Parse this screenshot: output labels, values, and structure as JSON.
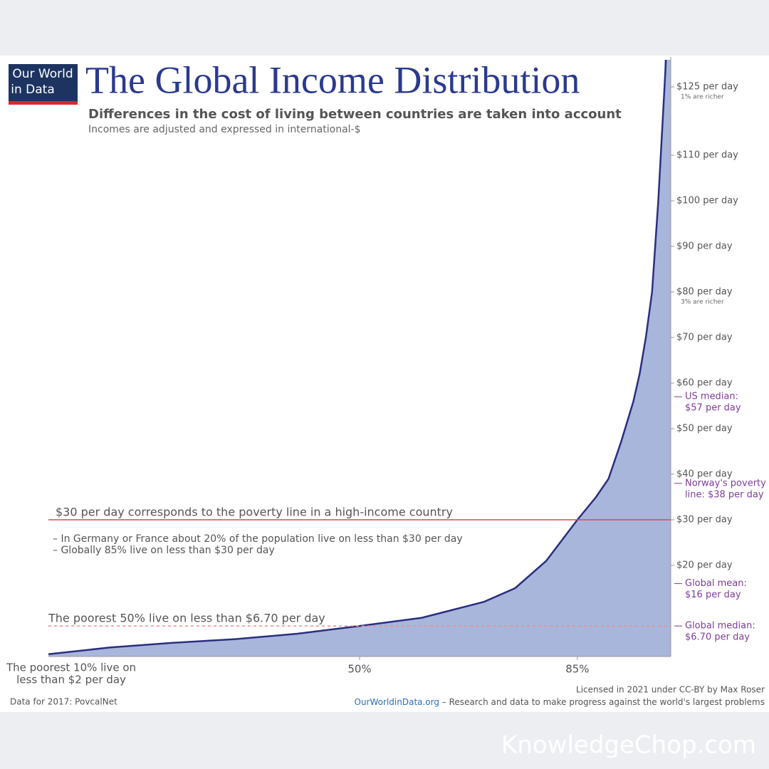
{
  "chart_data": {
    "type": "area",
    "logo": [
      "Our World",
      "in Data"
    ],
    "title": "The Global Income Distribution",
    "subtitle": "Differences in the cost of living between countries are taken into account",
    "note": "Incomes are adjusted and expressed in international-$",
    "x": [
      0,
      10,
      20,
      30,
      40,
      50,
      60,
      70,
      75,
      80,
      85,
      88,
      90,
      92,
      94,
      95,
      96,
      97,
      98,
      99
    ],
    "values": [
      0.5,
      2,
      3,
      3.8,
      5,
      6.7,
      8.5,
      12,
      15,
      21,
      30,
      35,
      39,
      47,
      56,
      62,
      70,
      80,
      100,
      125
    ],
    "color": "#a9b6dc",
    "line_color": "#2a2f7f",
    "xlim": [
      0,
      100
    ],
    "ylim": [
      0,
      130
    ],
    "xticks": [
      {
        "value": 50,
        "label": "50%"
      },
      {
        "value": 85,
        "label": "85%"
      }
    ],
    "yticks": [
      {
        "value": 20,
        "label": "$20 per day"
      },
      {
        "value": 30,
        "label": "$30 per day"
      },
      {
        "value": 40,
        "label": "$40 per day"
      },
      {
        "value": 50,
        "label": "$50 per day"
      },
      {
        "value": 60,
        "label": "$60 per day"
      },
      {
        "value": 70,
        "label": "$70 per day"
      },
      {
        "value": 80,
        "label": "$80 per day"
      },
      {
        "value": 90,
        "label": "$90 per day"
      },
      {
        "value": 100,
        "label": "$100 per day"
      },
      {
        "value": 110,
        "label": "$110 per day"
      },
      {
        "value": 125,
        "label": "$125 per day"
      }
    ],
    "tick_notes": [
      {
        "value": 125,
        "text": "1% are richer"
      },
      {
        "value": 80,
        "text": "3% are richer"
      }
    ],
    "markers": [
      {
        "value": 57,
        "lines": [
          "US median:",
          "$57 per day"
        ]
      },
      {
        "value": 38,
        "lines": [
          "Norway's poverty",
          "line: $38 per day"
        ]
      },
      {
        "value": 16,
        "lines": [
          "Global mean:",
          "$16 per day"
        ]
      },
      {
        "value": 6.7,
        "lines": [
          "Global median:",
          "$6.70 per day"
        ]
      }
    ],
    "reference_lines": [
      {
        "value": 30,
        "color": "#e0474c",
        "dashed": false,
        "lines": [
          "$30 per day corresponds to the poverty line in a high-income country",
          "– In Germany or France about 20% of the population live on less than $30 per day",
          "– Globally 85% live on less than $30 per day"
        ]
      },
      {
        "value": 6.7,
        "color": "#f08a8f",
        "dashed": true,
        "lines": [
          "The poorest 50% live on less than $6.70 per day"
        ]
      }
    ],
    "start_label": [
      "The poorest 10% live on",
      "less than $2 per day"
    ],
    "source": "Data for 2017: PovcalNet",
    "license": "Licensed in 2021 under CC-BY by Max Roser",
    "site": "OurWorldinData.org",
    "site_text": " – Research and data to make progress against the world's largest problems",
    "watermark": "KnowledgeChop.com"
  }
}
